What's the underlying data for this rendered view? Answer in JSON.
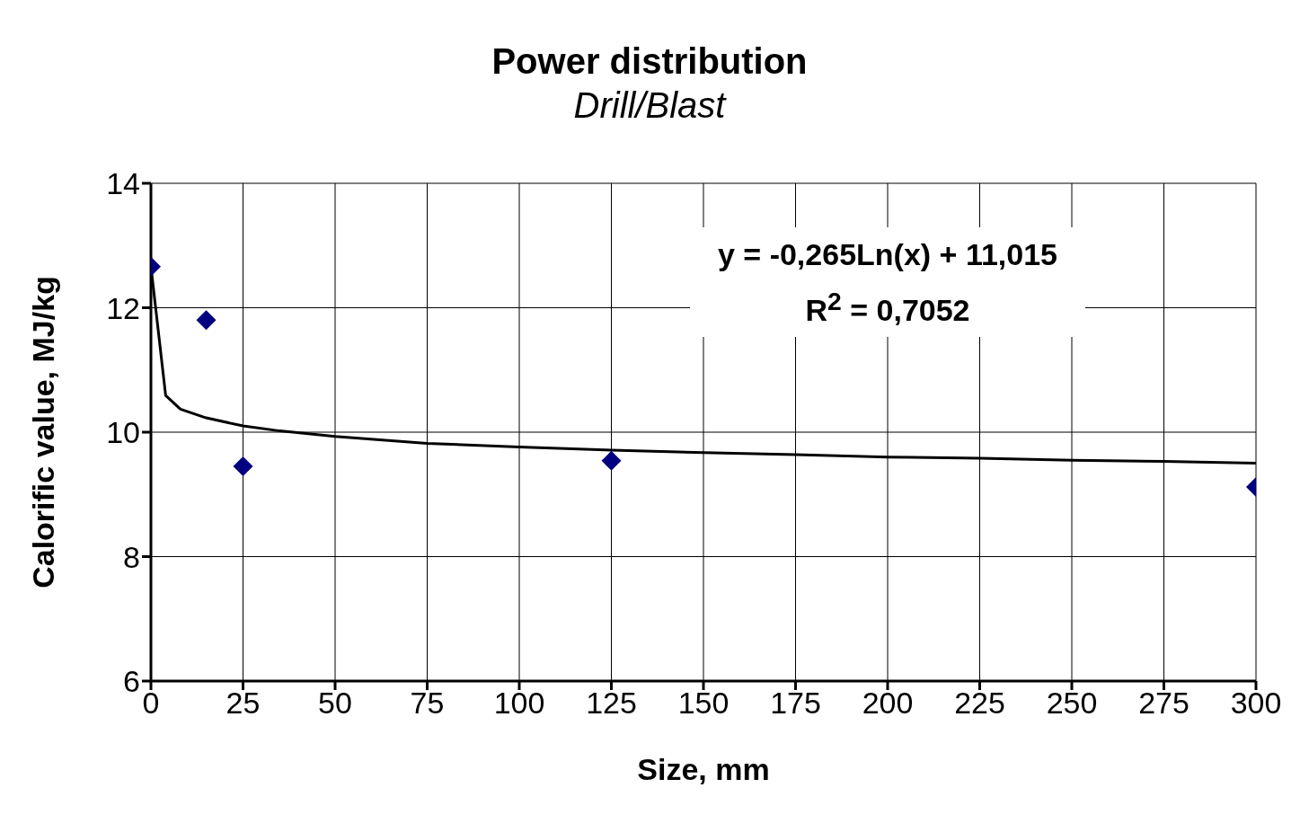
{
  "chart_data": {
    "type": "scatter",
    "title": "Power distribution",
    "subtitle": "Drill/Blast",
    "xlabel": "Size, mm",
    "ylabel": "Calorific value, MJ/kg",
    "xlim": [
      0,
      300
    ],
    "xticks": [
      0,
      25,
      50,
      75,
      100,
      125,
      150,
      175,
      200,
      225,
      250,
      275,
      300
    ],
    "ylim": [
      6,
      14
    ],
    "yticks": [
      6,
      8,
      10,
      12,
      14
    ],
    "grid": true,
    "annotations": [
      "y = -0,265Ln(x) + 11,015",
      "R$^{2}$ = 0,7052"
    ],
    "series": [
      {
        "color": "#000080",
        "marker": "diamond",
        "x": [
          0,
          15,
          25,
          125,
          300
        ],
        "values": [
          12.66,
          11.8,
          9.45,
          9.54,
          9.12
        ]
      },
      {
        "type": "line",
        "color": "#000000",
        "marker": "none",
        "x": [
          0,
          4,
          8,
          15,
          25,
          35,
          50,
          75,
          100,
          125,
          150,
          175,
          200,
          225,
          250,
          275,
          300
        ],
        "values": [
          12.66,
          10.59,
          10.37,
          10.23,
          10.1,
          10.02,
          9.93,
          9.82,
          9.76,
          9.71,
          9.67,
          9.64,
          9.6,
          9.58,
          9.55,
          9.53,
          9.5
        ]
      }
    ]
  }
}
